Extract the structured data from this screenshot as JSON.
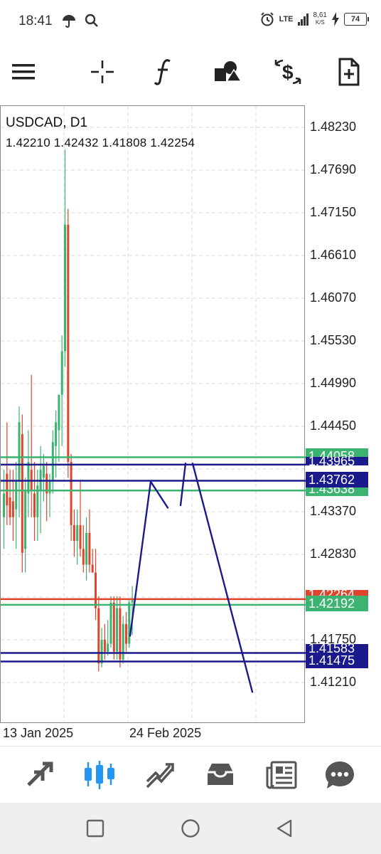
{
  "status_bar": {
    "time": "18:41",
    "network": "LTE",
    "speed_value": "8,61",
    "speed_unit": "K/S",
    "battery": "74"
  },
  "toolbar": {
    "icons": [
      "menu-icon",
      "crosshair-icon",
      "function-icon",
      "objects-icon",
      "symbols-icon",
      "new-order-icon"
    ]
  },
  "chart": {
    "symbol": "USDCAD, D1",
    "ohlc": "1.42210 1.42432 1.41808 1.42254",
    "date_labels": [
      "13 Jan 2025",
      "24 Feb 2025"
    ],
    "price_ticks": [
      "1.48230",
      "1.47690",
      "1.47150",
      "1.46610",
      "1.46070",
      "1.45530",
      "1.44990",
      "1.44450",
      "1.43370",
      "1.42830",
      "1.41750",
      "1.41210"
    ],
    "badges": [
      {
        "text": "1.44058",
        "color": "#3cb371"
      },
      {
        "text": "1.43965",
        "color": "#1a1a8c"
      },
      {
        "text": "1.43762",
        "color": "#1a1a8c"
      },
      {
        "text": "1.43638",
        "color": "#3cb371"
      },
      {
        "text": "1.42264",
        "color": "#e0442c"
      },
      {
        "text": "1.42192",
        "color": "#3cb371"
      },
      {
        "text": "1.41583",
        "color": "#1a1a8c"
      },
      {
        "text": "1.41475",
        "color": "#1a1a8c"
      }
    ],
    "colors": {
      "bull": "#3cb371",
      "bear": "#e0442c",
      "line_blue": "#1a1a8c",
      "grid": "#d8d8d8"
    }
  },
  "nav": {
    "icons": [
      "quotes-icon",
      "chart-icon",
      "trade-icon",
      "history-icon",
      "news-icon",
      "messages-icon"
    ],
    "active": "chart-icon",
    "active_color": "#2196f3"
  },
  "system_nav": {
    "icons": [
      "recents-icon",
      "home-icon",
      "back-icon"
    ]
  }
}
